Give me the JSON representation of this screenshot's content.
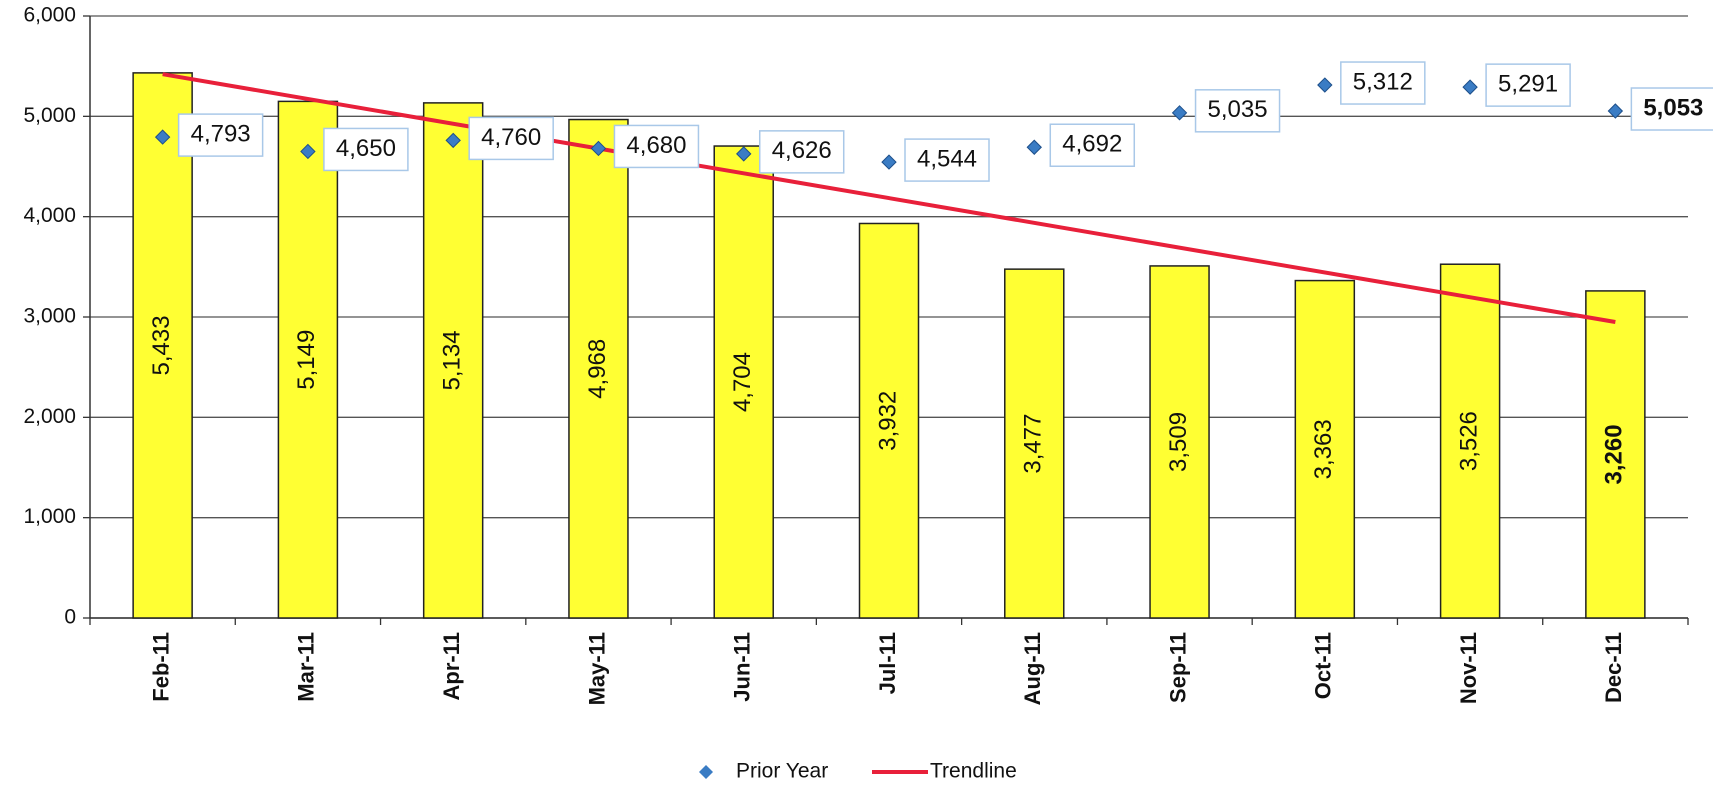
{
  "chart_data": {
    "type": "bar",
    "categories": [
      "Feb-11",
      "Mar-11",
      "Apr-11",
      "May-11",
      "Jun-11",
      "Jul-11",
      "Aug-11",
      "Sep-11",
      "Oct-11",
      "Nov-11",
      "Dec-11"
    ],
    "values": [
      5433,
      5149,
      5134,
      4968,
      4704,
      3932,
      3477,
      3509,
      3363,
      3526,
      3260
    ],
    "value_labels": [
      "5,433",
      "5,149",
      "5,134",
      "4,968",
      "4,704",
      "3,932",
      "3,477",
      "3,509",
      "3,363",
      "3,526",
      "3,260"
    ],
    "color": "#ffff33",
    "series": [
      {
        "name": "Prior Year",
        "color": "#3a7cc4",
        "values": [
          4793,
          4650,
          4760,
          4680,
          4626,
          4544,
          4692,
          5035,
          5312,
          5291,
          5053
        ],
        "value_labels": [
          "4,793",
          "4,650",
          "4,760",
          "4,680",
          "4,626",
          "4,544",
          "4,692",
          "5,035",
          "5,312",
          "5,291",
          "5,053"
        ]
      }
    ],
    "trendline": {
      "name": "Trendline",
      "color": "#e8203a",
      "start": 5420,
      "end": 2950
    },
    "ylim": [
      0,
      6000
    ],
    "yticks": [
      0,
      {
        "value": 1000,
        "label": "1,000"
      },
      {
        "value": 2000,
        "label": "2,000"
      },
      {
        "value": 3000,
        "label": "3,000"
      },
      {
        "value": 4000,
        "label": "4,000"
      },
      {
        "value": 5000,
        "label": "5,000"
      },
      {
        "value": 6000,
        "label": "6,000"
      }
    ],
    "grid": true
  }
}
